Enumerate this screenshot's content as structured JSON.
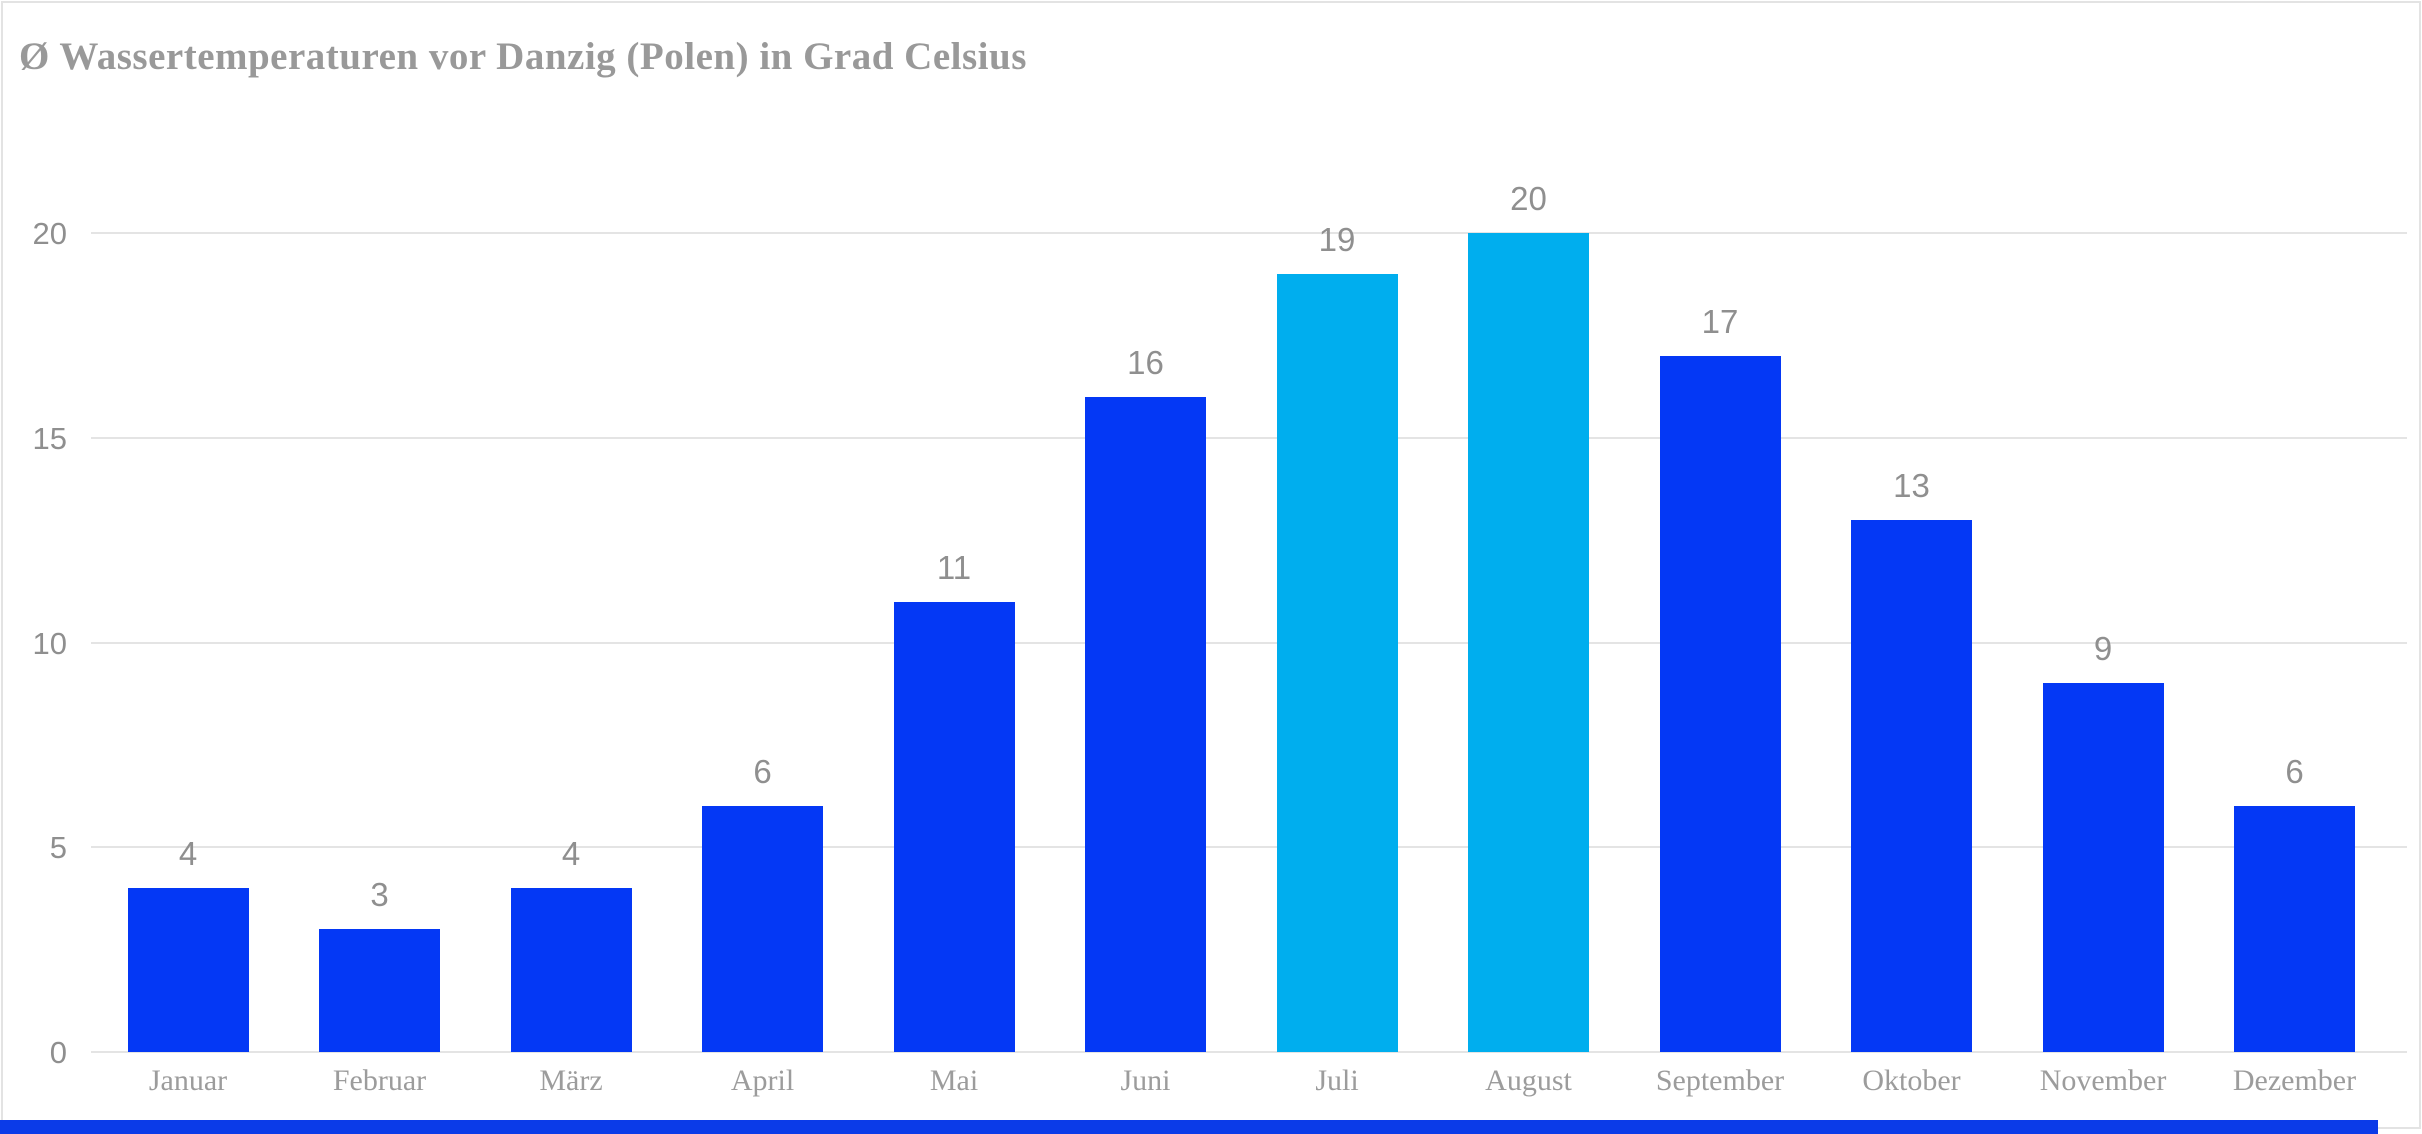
{
  "chart_data": {
    "type": "bar",
    "title": "Ø Wassertemperaturen vor Danzig (Polen) in Grad Celsius",
    "categories": [
      "Januar",
      "Februar",
      "März",
      "April",
      "Mai",
      "Juni",
      "Juli",
      "August",
      "September",
      "Oktober",
      "November",
      "Dezember"
    ],
    "values": [
      4,
      3,
      4,
      6,
      11,
      16,
      19,
      20,
      17,
      13,
      9,
      6
    ],
    "highlighted_categories": [
      "Juli",
      "August"
    ],
    "data_labels_shown": true,
    "xlabel": "",
    "ylabel": "",
    "yticks": [
      0,
      5,
      10,
      15,
      20
    ],
    "ylim": [
      0,
      21.5
    ],
    "grid": "horizontal",
    "legend": "none"
  },
  "colors": {
    "bar_default": "#0438F5",
    "bar_highlight": "#00AEEE",
    "gridline": "#E4E4E4",
    "axis_text": "#8F8F8F",
    "month_text": "#9C9C9C",
    "title_text": "#999999",
    "card_border": "#E3E3E3",
    "bottom_strip": "#0B3BE8"
  }
}
